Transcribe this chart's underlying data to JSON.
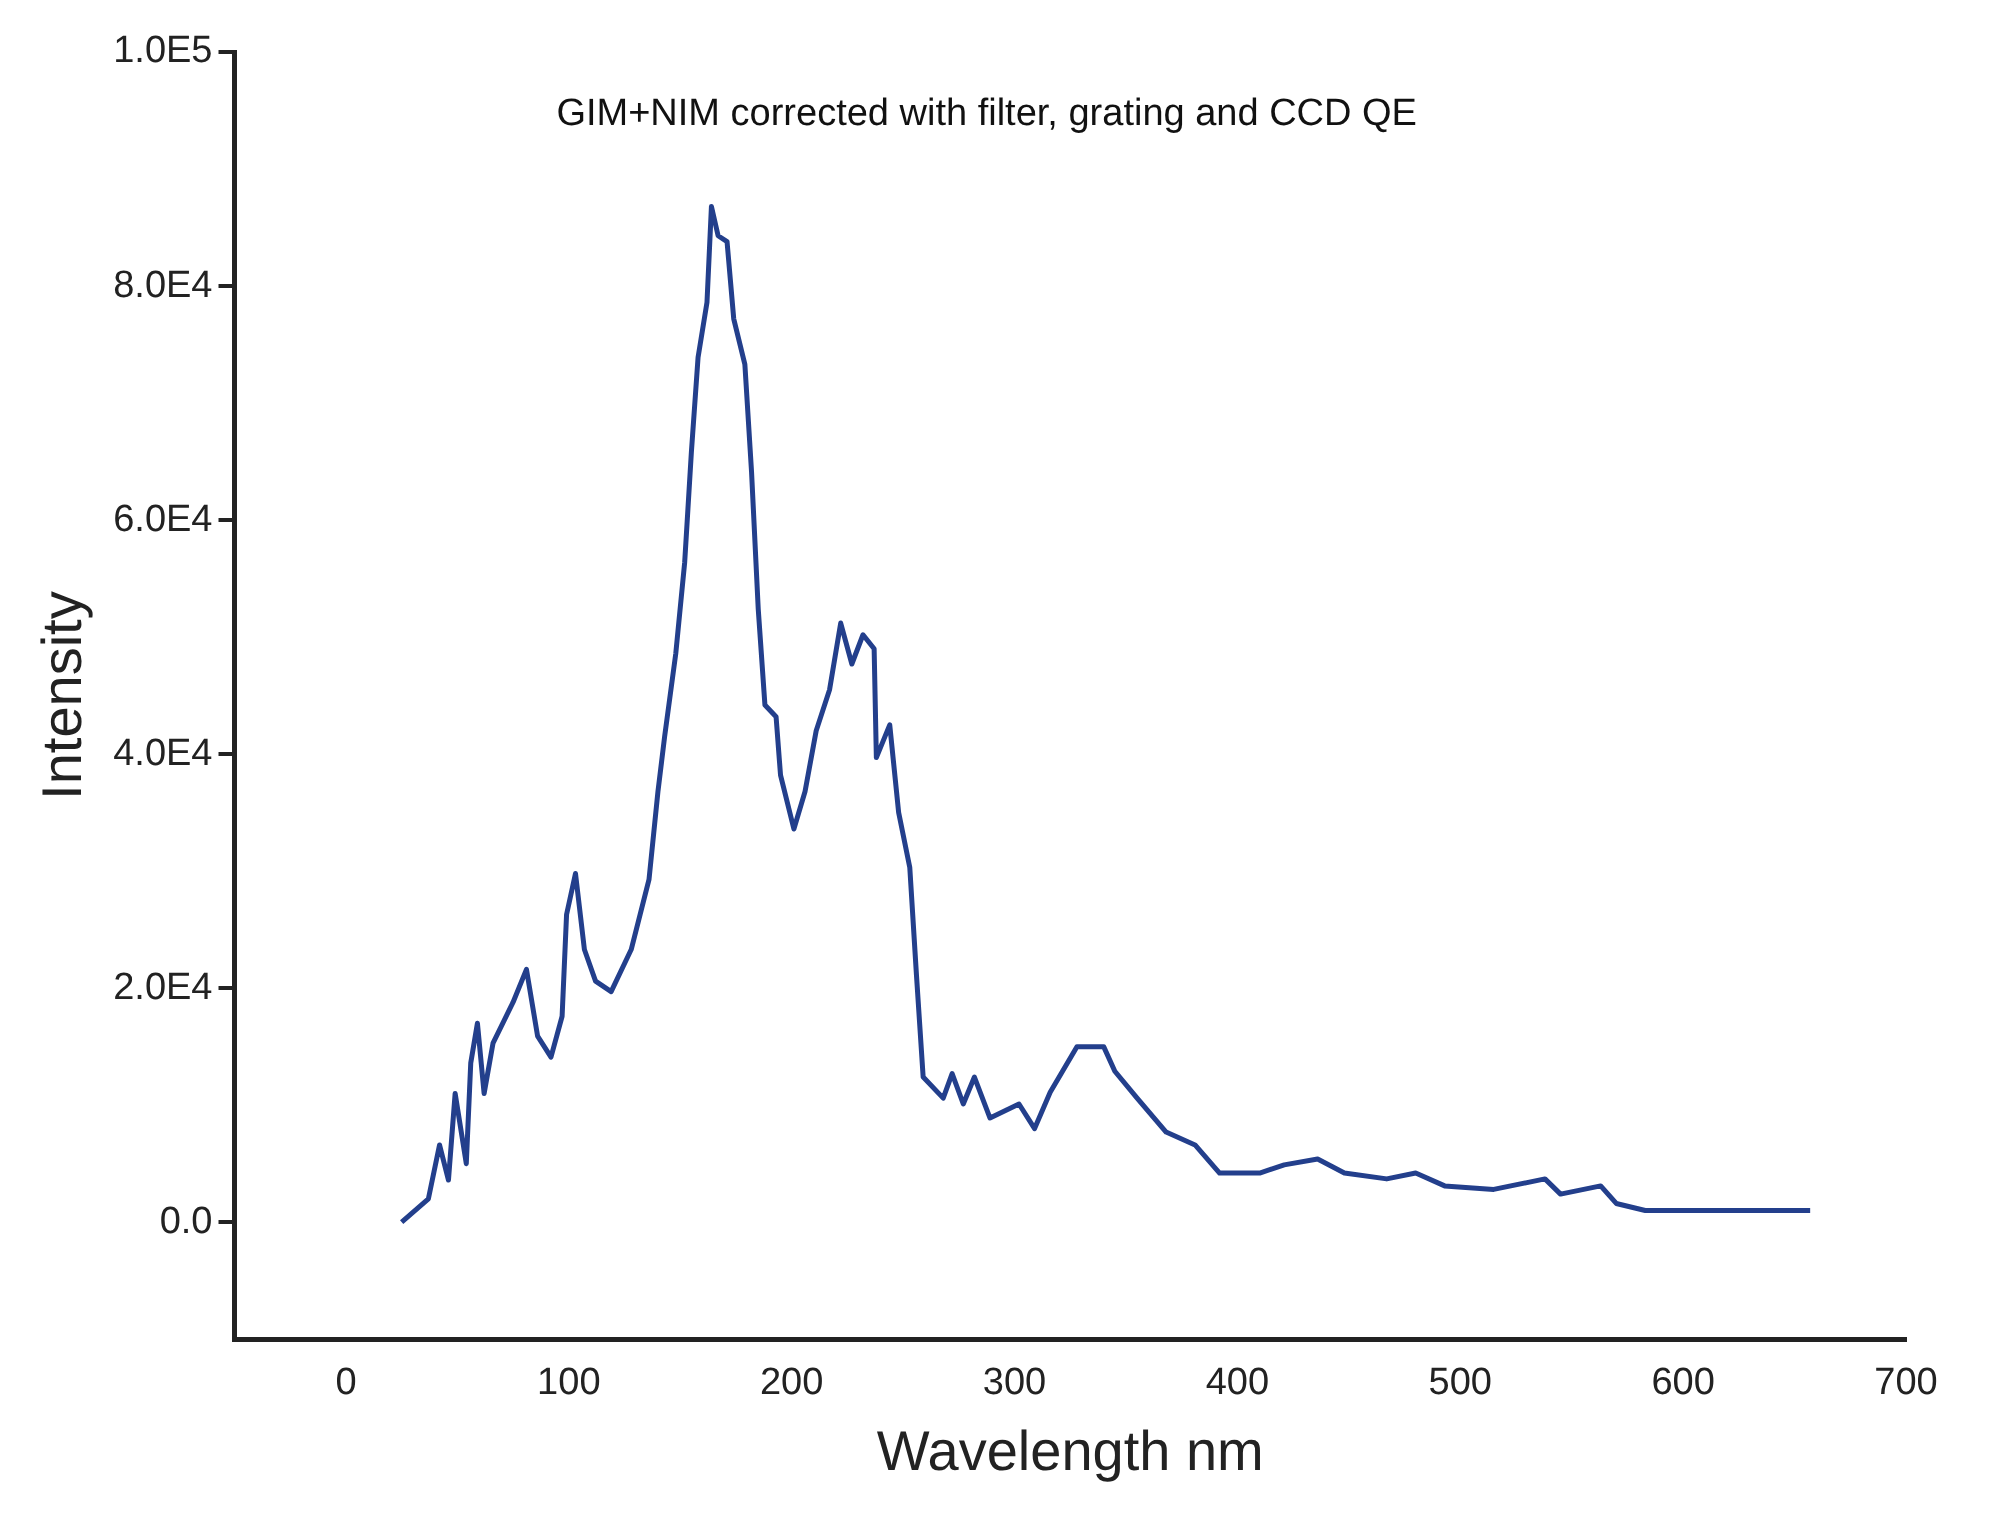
{
  "chart_data": {
    "type": "line",
    "xlabel": "Wavelength nm",
    "ylabel": "Intensity",
    "annotations": [
      "GIM+NIM corrected with filter, grating and CCD QE"
    ],
    "xlim": [
      -50,
      700
    ],
    "xticks": [
      0,
      100,
      200,
      300,
      400,
      500,
      600,
      700
    ],
    "ylim": [
      -10000,
      100000
    ],
    "yticks": [
      {
        "value": 0,
        "label": "0.0"
      },
      {
        "value": 20000,
        "label": "2.0E4"
      },
      {
        "value": 40000,
        "label": "4.0E4"
      },
      {
        "value": 60000,
        "label": "6.0E4"
      },
      {
        "value": 80000,
        "label": "8.0E4"
      },
      {
        "value": 100000,
        "label": "1.0E5"
      }
    ],
    "grid": false,
    "legend": false,
    "marker": "none",
    "line_style": "solid",
    "series": [
      {
        "color": "#233f8c",
        "x": [
          25,
          37,
          42,
          46,
          49,
          54,
          56,
          59,
          62,
          66,
          75,
          81,
          86,
          92,
          97,
          99,
          103,
          107,
          112,
          119,
          128,
          136,
          140,
          143,
          148,
          152,
          155,
          158,
          162,
          164,
          167,
          171,
          174,
          179,
          182,
          185,
          188,
          193,
          195,
          201,
          206,
          211,
          217,
          222,
          227,
          232,
          237,
          238,
          244,
          248,
          253,
          256,
          259,
          268,
          272,
          277,
          282,
          289,
          302,
          309,
          316,
          328,
          340,
          345,
          355,
          368,
          381,
          392,
          410,
          421,
          436,
          448,
          467,
          480,
          493,
          515,
          538,
          545,
          563,
          570,
          583,
          657
        ],
        "values": [
          0,
          2000,
          6600,
          3600,
          11000,
          5000,
          13600,
          17000,
          11000,
          15300,
          18800,
          21600,
          15900,
          14100,
          17600,
          26300,
          29800,
          23300,
          20600,
          19700,
          23300,
          29300,
          36800,
          41500,
          48600,
          56400,
          65800,
          73900,
          78600,
          86800,
          84300,
          83800,
          77200,
          73300,
          64100,
          52400,
          44200,
          43200,
          38200,
          33600,
          36800,
          42000,
          45500,
          51200,
          47700,
          50200,
          49000,
          39700,
          42500,
          35000,
          30300,
          21100,
          12400,
          10600,
          12700,
          10100,
          12400,
          8900,
          10100,
          8000,
          11100,
          15000,
          15000,
          12900,
          10600,
          7700,
          6600,
          4200,
          4200,
          4900,
          5400,
          4200,
          3700,
          4200,
          3100,
          2800,
          3700,
          2400,
          3100,
          1600,
          1000,
          1000
        ]
      }
    ]
  }
}
